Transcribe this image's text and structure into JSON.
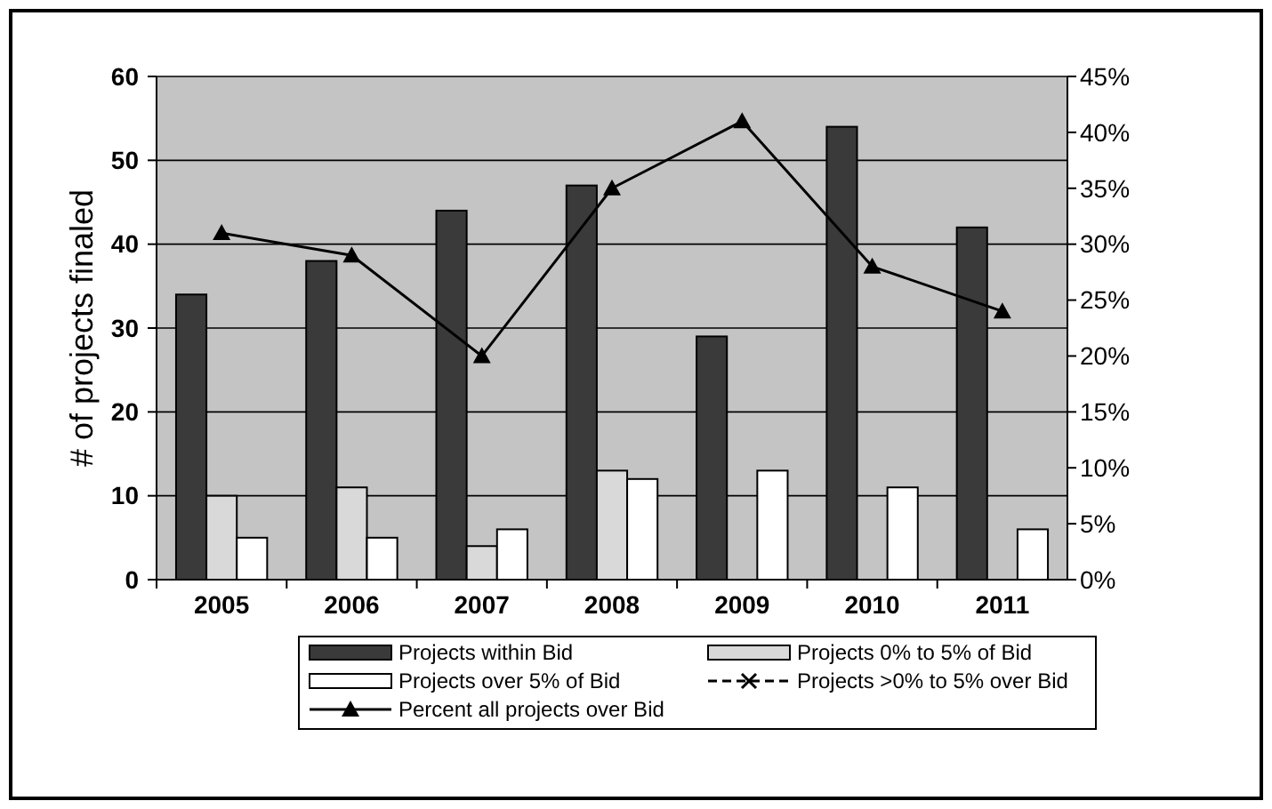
{
  "chart_data": {
    "type": "bar",
    "ylabel": "# of projects finaled",
    "categories": [
      "2005",
      "2006",
      "2007",
      "2008",
      "2009",
      "2010",
      "2011"
    ],
    "series": [
      {
        "name": "Projects within Bid",
        "color": "#3a3a3a",
        "values": [
          34,
          38,
          44,
          47,
          29,
          54,
          42
        ]
      },
      {
        "name": "Projects 0% to 5% of Bid",
        "color": "#d9d9d9",
        "values": [
          10,
          11,
          4,
          13,
          0,
          0,
          0
        ]
      },
      {
        "name": "Projects over 5% of Bid",
        "color": "#ffffff",
        "values": [
          5,
          5,
          6,
          12,
          13,
          11,
          6
        ]
      },
      {
        "name": "Projects >0% to 5% over Bid",
        "type": "line",
        "axis": "y2",
        "color": "#000000",
        "marker": "cross",
        "line_style": "dashed",
        "values": [
          null,
          null,
          null,
          null,
          null,
          null,
          null
        ]
      },
      {
        "name": "Percent all projects over Bid",
        "type": "line",
        "axis": "y2",
        "color": "#000000",
        "marker": "triangle",
        "line_style": "solid",
        "values": [
          31,
          29,
          20,
          35,
          41,
          28,
          24
        ]
      }
    ],
    "ylim": [
      0,
      60
    ],
    "yticks": [
      0,
      10,
      20,
      30,
      40,
      50,
      60
    ],
    "y2lim": [
      0,
      45
    ],
    "y2ticks": [
      {
        "value": 0,
        "label": "0%"
      },
      {
        "value": 5,
        "label": "5%"
      },
      {
        "value": 10,
        "label": "10%"
      },
      {
        "value": 15,
        "label": "15%"
      },
      {
        "value": 20,
        "label": "20%"
      },
      {
        "value": 25,
        "label": "25%"
      },
      {
        "value": 30,
        "label": "30%"
      },
      {
        "value": 35,
        "label": "35%"
      },
      {
        "value": 40,
        "label": "40%"
      },
      {
        "value": 45,
        "label": "45%"
      }
    ],
    "grid": "y",
    "legend": "bottom"
  }
}
